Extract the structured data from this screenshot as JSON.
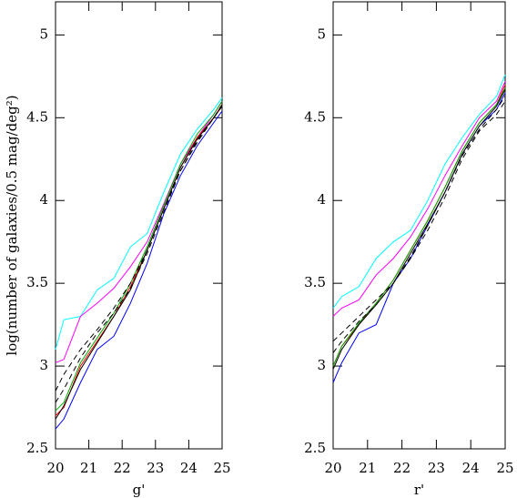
{
  "chart_data": [
    {
      "type": "line",
      "xlabel": "g'",
      "ylabel": "log(number of galaxies/0.5 mag/deg²)",
      "xlim": [
        20,
        25
      ],
      "ylim": [
        2.5,
        5.2
      ],
      "xticks": [
        20,
        21,
        22,
        23,
        24,
        25
      ],
      "yticks": [
        2.5,
        3,
        3.5,
        4,
        4.5,
        5
      ],
      "x": [
        20,
        20.25,
        20.75,
        21.25,
        21.75,
        22.25,
        22.75,
        23.25,
        23.75,
        24.25,
        24.75,
        25
      ],
      "series": [
        {
          "color": "#00ffff",
          "values": [
            3.1,
            3.28,
            3.3,
            3.46,
            3.53,
            3.72,
            3.8,
            4.05,
            4.28,
            4.43,
            4.55,
            4.62
          ]
        },
        {
          "color": "#ff00ff",
          "values": [
            3.02,
            3.04,
            3.3,
            3.38,
            3.47,
            3.6,
            3.75,
            3.98,
            4.22,
            4.38,
            4.52,
            4.6
          ]
        },
        {
          "color": "#0000ff",
          "values": [
            2.62,
            2.68,
            2.9,
            3.1,
            3.18,
            3.38,
            3.62,
            3.92,
            4.15,
            4.33,
            4.47,
            4.54
          ]
        },
        {
          "color": "#ff0000",
          "values": [
            2.7,
            2.75,
            3.0,
            3.15,
            3.3,
            3.48,
            3.7,
            3.95,
            4.2,
            4.38,
            4.5,
            4.58
          ]
        },
        {
          "color": "#00aa00",
          "values": [
            2.73,
            2.78,
            3.02,
            3.17,
            3.32,
            3.5,
            3.72,
            3.97,
            4.22,
            4.4,
            4.52,
            4.6
          ]
        },
        {
          "color": "#000000",
          "values": [
            2.68,
            2.76,
            2.98,
            3.14,
            3.3,
            3.46,
            3.7,
            3.95,
            4.2,
            4.37,
            4.5,
            4.57
          ]
        },
        {
          "color": "#000000",
          "dash": true,
          "values": [
            2.85,
            2.95,
            3.1,
            3.22,
            3.35,
            3.5,
            3.7,
            3.95,
            4.18,
            4.35,
            4.5,
            4.58
          ]
        },
        {
          "color": "#000000",
          "dash": true,
          "values": [
            2.78,
            2.86,
            3.05,
            3.2,
            3.32,
            3.47,
            3.68,
            3.93,
            4.18,
            4.36,
            4.5,
            4.57
          ]
        }
      ]
    },
    {
      "type": "line",
      "xlabel": "r'",
      "xlim": [
        20,
        25
      ],
      "ylim": [
        2.5,
        5.2
      ],
      "xticks": [
        20,
        21,
        22,
        23,
        24,
        25
      ],
      "yticks": [
        2.5,
        3,
        3.5,
        4,
        4.5,
        5
      ],
      "x": [
        20,
        20.25,
        20.75,
        21.25,
        21.75,
        22.25,
        22.75,
        23.25,
        23.75,
        24.25,
        24.75,
        25
      ],
      "series": [
        {
          "color": "#00ffff",
          "values": [
            3.35,
            3.42,
            3.48,
            3.65,
            3.75,
            3.82,
            4.0,
            4.22,
            4.38,
            4.52,
            4.63,
            4.76
          ]
        },
        {
          "color": "#ff00ff",
          "values": [
            3.3,
            3.35,
            3.4,
            3.55,
            3.65,
            3.78,
            3.95,
            4.15,
            4.33,
            4.5,
            4.6,
            4.72
          ]
        },
        {
          "color": "#0000ff",
          "values": [
            2.9,
            3.02,
            3.2,
            3.25,
            3.5,
            3.65,
            3.85,
            4.05,
            4.28,
            4.45,
            4.55,
            4.65
          ]
        },
        {
          "color": "#ff0000",
          "values": [
            3.0,
            3.12,
            3.25,
            3.38,
            3.52,
            3.7,
            3.88,
            4.08,
            4.3,
            4.47,
            4.58,
            4.7
          ]
        },
        {
          "color": "#00aa00",
          "values": [
            3.0,
            3.12,
            3.26,
            3.38,
            3.52,
            3.7,
            3.88,
            4.08,
            4.3,
            4.47,
            4.58,
            4.68
          ]
        },
        {
          "color": "#000000",
          "values": [
            2.98,
            3.1,
            3.25,
            3.37,
            3.5,
            3.68,
            3.86,
            4.05,
            4.28,
            4.45,
            4.57,
            4.67
          ]
        },
        {
          "color": "#000000",
          "dash": true,
          "values": [
            3.15,
            3.2,
            3.3,
            3.4,
            3.5,
            3.65,
            3.82,
            4.02,
            4.25,
            4.42,
            4.52,
            4.6
          ]
        },
        {
          "color": "#000000",
          "dash": true,
          "values": [
            3.08,
            3.15,
            3.27,
            3.37,
            3.5,
            3.66,
            3.85,
            4.05,
            4.27,
            4.43,
            4.55,
            4.63
          ]
        }
      ]
    }
  ]
}
